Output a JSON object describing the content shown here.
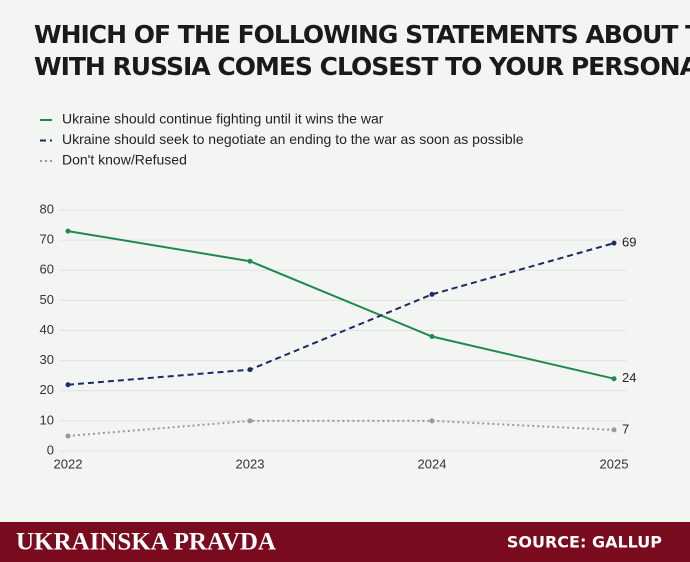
{
  "chart_data": {
    "type": "line",
    "title": "WHICH OF THE FOLLOWING STATEMENTS ABOUT THE WAR WITH RUSSIA COMES CLOSEST TO YOUR PERSONAL VIEWS?",
    "categories": [
      "2022",
      "2023",
      "2024",
      "2025"
    ],
    "series": [
      {
        "name": "Ukraine should continue fighting until it wins the war",
        "color": "#1e8a4f",
        "style": "solid",
        "values": [
          73,
          63,
          38,
          24
        ]
      },
      {
        "name": "Ukraine should seek to negotiate an ending to the war as soon as possible",
        "color": "#1b2a6b",
        "style": "dashed",
        "values": [
          22,
          27,
          52,
          69
        ]
      },
      {
        "name": "Don't know/Refused",
        "color": "#999999",
        "style": "dotted",
        "values": [
          5,
          10,
          10,
          7
        ]
      }
    ],
    "ylim": [
      0,
      80
    ],
    "yticks": [
      0,
      10,
      20,
      30,
      40,
      50,
      60,
      70,
      80
    ],
    "grid": true
  },
  "footer": {
    "brand": "UKRAINSKA PRAVDA",
    "source": "SOURCE: GALLUP"
  }
}
